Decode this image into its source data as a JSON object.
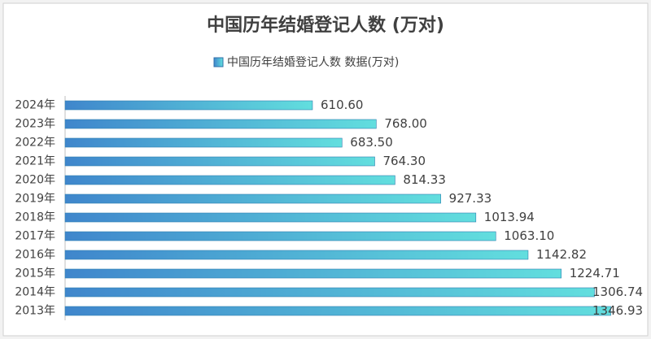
{
  "chart_data": {
    "type": "bar",
    "orientation": "horizontal",
    "title": "中国历年结婚登记人数 (万对)",
    "categories": [
      "2024年",
      "2023年",
      "2022年",
      "2021年",
      "2020年",
      "2019年",
      "2018年",
      "2017年",
      "2016年",
      "2015年",
      "2014年",
      "2013年"
    ],
    "series": [
      {
        "name": "中国历年结婚登记人数 数据(万对)",
        "color": "#4fb8d8",
        "values": [
          610.6,
          768.0,
          683.5,
          764.3,
          814.33,
          927.33,
          1013.94,
          1063.1,
          1142.82,
          1224.71,
          1306.74,
          1346.93
        ],
        "value_labels": [
          "610.60",
          "768.00",
          "683.50",
          "764.30",
          "814.33",
          "927.33",
          "1013.94",
          "1063.10",
          "1142.82",
          "1224.71",
          "1306.74",
          "1346.93"
        ]
      }
    ],
    "xlim": [
      0,
      1400
    ],
    "legend": "top"
  }
}
